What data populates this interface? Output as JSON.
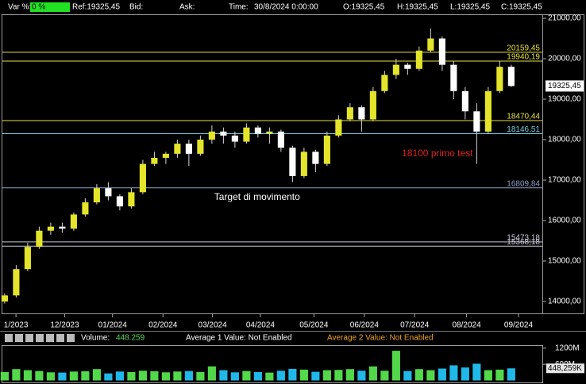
{
  "toolbar": {
    "var_label": "Var %:",
    "var_value": "0 %",
    "ref": "Ref:19325,45",
    "bid": "Bid:",
    "ask": "Ask:",
    "time_label": "Time:",
    "time": "30/8/2024 0:00:00",
    "open": "O:19325,45",
    "high": "H:19325,45",
    "low": "L:19325,45",
    "close": "C:19325,45"
  },
  "chart_data": {
    "type": "candlestick",
    "x": [
      0,
      1,
      2,
      3,
      4,
      5,
      6,
      7,
      8,
      9,
      10,
      11,
      12,
      13,
      14,
      15,
      16,
      17,
      18,
      19,
      20,
      21,
      22,
      23,
      24,
      25,
      26,
      27,
      28,
      29,
      30,
      31,
      32,
      33,
      34,
      35,
      36,
      37,
      38,
      39,
      40,
      41,
      42,
      43,
      44
    ],
    "open": [
      14000,
      14150,
      14800,
      15350,
      15750,
      15850,
      15800,
      16150,
      16450,
      16800,
      16600,
      16350,
      16700,
      17400,
      17550,
      17650,
      17900,
      17650,
      18000,
      18200,
      18100,
      17950,
      18300,
      18150,
      18200,
      17800,
      17100,
      17700,
      17400,
      18100,
      18500,
      18800,
      18500,
      19200,
      19600,
      19850,
      19750,
      20200,
      20500,
      19850,
      19200,
      18700,
      18200,
      19200,
      19800
    ],
    "high": [
      14200,
      14900,
      15450,
      15850,
      15950,
      15950,
      16200,
      16550,
      16900,
      16950,
      16650,
      16800,
      17500,
      17700,
      17700,
      18000,
      18000,
      18100,
      18350,
      18300,
      18200,
      18400,
      18350,
      18300,
      18250,
      17850,
      17800,
      17750,
      18200,
      18600,
      18900,
      18850,
      19300,
      19700,
      20000,
      19900,
      20300,
      20750,
      20550,
      19950,
      19300,
      18900,
      19300,
      19950,
      19850
    ],
    "low": [
      13950,
      14100,
      14750,
      15300,
      15650,
      15700,
      15750,
      16100,
      16400,
      16500,
      16250,
      16300,
      16650,
      17350,
      17400,
      17550,
      17350,
      17600,
      17900,
      17900,
      17800,
      17900,
      18050,
      17900,
      17700,
      16950,
      17050,
      17200,
      17350,
      18050,
      18450,
      18200,
      18450,
      19150,
      19500,
      19600,
      19700,
      20150,
      19700,
      19000,
      18500,
      17400,
      18150,
      19150,
      19300
    ],
    "close": [
      14150,
      14800,
      15350,
      15750,
      15850,
      15800,
      16150,
      16450,
      16800,
      16600,
      16350,
      16700,
      17400,
      17550,
      17650,
      17900,
      17650,
      18000,
      18200,
      18100,
      17950,
      18300,
      18150,
      18200,
      17800,
      17100,
      17700,
      17400,
      18100,
      18500,
      18800,
      18500,
      19200,
      19600,
      19850,
      19750,
      20200,
      20500,
      19850,
      19200,
      18700,
      18200,
      19200,
      19800,
      19325.45
    ],
    "up_color": "#e4e42a",
    "down_color": "#ffffff",
    "wick_color": "#d8d8d8",
    "xlim": [
      -0.2,
      46.7
    ],
    "ylim": [
      13706,
      21098
    ],
    "xticks": [
      {
        "value": 0.98,
        "label": "1/2023"
      },
      {
        "value": 5.21,
        "label": "12/2023"
      },
      {
        "value": 9.37,
        "label": "01/2024"
      },
      {
        "value": 13.75,
        "label": "02/2024"
      },
      {
        "value": 18.05,
        "label": "03/2024"
      },
      {
        "value": 22.21,
        "label": "04/2024"
      },
      {
        "value": 26.86,
        "label": "05/2024"
      },
      {
        "value": 31.24,
        "label": "06/2024"
      },
      {
        "value": 35.61,
        "label": "07/2024"
      },
      {
        "value": 40.12,
        "label": "08/2024"
      },
      {
        "value": 44.63,
        "label": "09/2024"
      }
    ],
    "yticks": [
      {
        "value": 14000,
        "label": "14000,00"
      },
      {
        "value": 15000,
        "label": "15000,00"
      },
      {
        "value": 16000,
        "label": "16000,00"
      },
      {
        "value": 17000,
        "label": "17000,00"
      },
      {
        "value": 18000,
        "label": "18000,00"
      },
      {
        "value": 19000,
        "label": "19000,00"
      },
      {
        "value": 20000,
        "label": "20000,00"
      },
      {
        "value": 21000,
        "label": "21000,00"
      }
    ],
    "levels": [
      {
        "value": 20159.45,
        "label": "20159,45",
        "color": "#e8e040"
      },
      {
        "value": 19940.19,
        "label": "19940,19",
        "color": "#e8e040"
      },
      {
        "value": 18470.44,
        "label": "18470,44",
        "color": "#e8e040"
      },
      {
        "value": 18146.51,
        "label": "18146,51",
        "color": "#70d0e0"
      },
      {
        "value": 16809.84,
        "label": "16809,84",
        "color": "#8fa0c8"
      },
      {
        "value": 15473.18,
        "label": "15473,18",
        "color": "#c8c8d8"
      },
      {
        "value": 15368.18,
        "label": "15368,18",
        "color": "#c8c8d8"
      }
    ],
    "last": {
      "value": 19325.45,
      "label": "19325,45"
    },
    "annotations": [
      {
        "text": "18100 primo test",
        "x": 34.5,
        "y": 17650,
        "color": "#e02020"
      },
      {
        "text": "Target di movimento",
        "x": 18.2,
        "y": 16570,
        "color": "#ffffff"
      }
    ],
    "volume": {
      "label": "Volume:",
      "value_text": "448.259",
      "avg1": "Average 1 Value: Not Enabled",
      "avg2": "Average 2 Value: Not Enabled",
      "values": [
        310,
        420,
        380,
        350,
        300,
        290,
        330,
        340,
        420,
        260,
        330,
        310,
        360,
        340,
        300,
        330,
        350,
        310,
        520,
        380,
        300,
        350,
        310,
        290,
        360,
        430,
        400,
        320,
        380,
        390,
        420,
        360,
        520,
        360,
        1100,
        350,
        420,
        380,
        440,
        560,
        480,
        620,
        380,
        400,
        448.259
      ],
      "up_color": "#52d84a",
      "down_color": "#20b8e8",
      "ylim": [
        0,
        1280
      ],
      "yticks": [
        {
          "value": 600,
          "label": "600M"
        },
        {
          "value": 1200,
          "label": "1200M"
        }
      ],
      "last": {
        "value": 448.259,
        "label": "448,259K"
      }
    }
  }
}
